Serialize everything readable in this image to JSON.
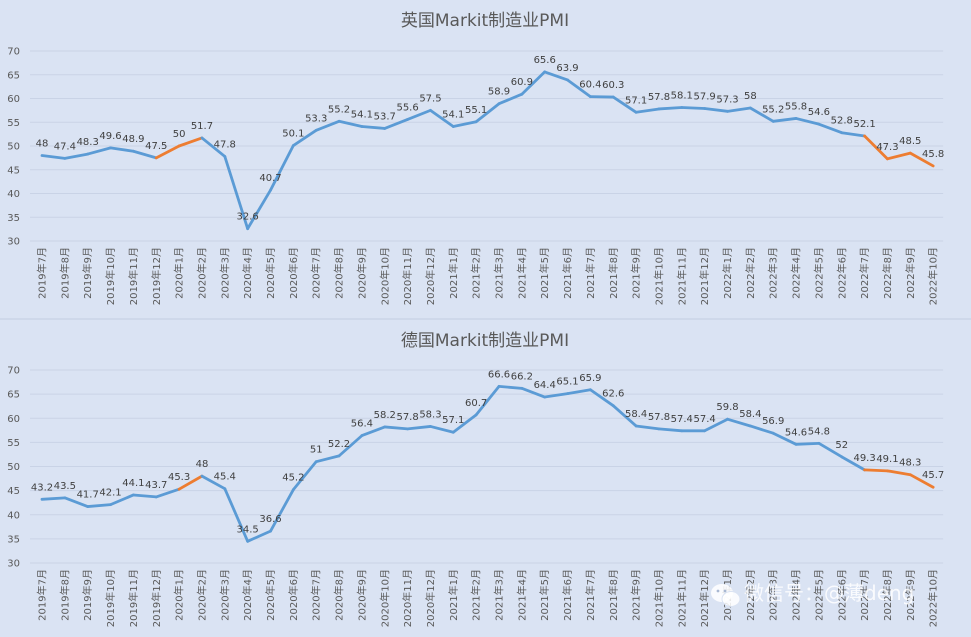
{
  "chart_data": [
    {
      "type": "line",
      "title": "英国Markit制造业PMI",
      "ylim": [
        30,
        70
      ],
      "yticks": [
        30,
        35,
        40,
        45,
        50,
        55,
        60,
        65,
        70
      ],
      "grid": true,
      "categories": [
        "2019年7月",
        "2019年8月",
        "2019年9月",
        "2019年10月",
        "2019年11月",
        "2019年12月",
        "2020年1月",
        "2020年2月",
        "2020年3月",
        "2020年4月",
        "2020年5月",
        "2020年6月",
        "2020年7月",
        "2020年8月",
        "2020年9月",
        "2020年10月",
        "2020年11月",
        "2020年12月",
        "2021年1月",
        "2021年2月",
        "2021年3月",
        "2021年4月",
        "2021年5月",
        "2021年6月",
        "2021年7月",
        "2021年8月",
        "2021年9月",
        "2021年10月",
        "2021年11月",
        "2021年12月",
        "2022年1月",
        "2022年2月",
        "2022年3月",
        "2022年4月",
        "2022年5月",
        "2022年6月",
        "2022年7月",
        "2022年8月",
        "2022年9月",
        "2022年10月"
      ],
      "values": [
        48,
        47.4,
        48.3,
        49.6,
        48.9,
        47.5,
        50,
        51.7,
        47.8,
        32.6,
        40.7,
        50.1,
        53.3,
        55.2,
        54.1,
        53.7,
        55.6,
        57.5,
        54.1,
        55.1,
        58.9,
        60.9,
        65.6,
        63.9,
        60.4,
        60.3,
        57.1,
        57.8,
        58.1,
        57.9,
        57.3,
        58,
        55.2,
        55.8,
        54.6,
        52.8,
        52.1,
        47.3,
        48.5,
        45.8
      ],
      "colors": {
        "line": "#5b9bd5",
        "highlight": "#ed7d31"
      },
      "highlight_segments": [
        [
          5,
          7
        ],
        [
          36,
          39
        ]
      ]
    },
    {
      "type": "line",
      "title": "德国Markit制造业PMI",
      "ylim": [
        30,
        70
      ],
      "yticks": [
        30,
        35,
        40,
        45,
        50,
        55,
        60,
        65,
        70
      ],
      "grid": true,
      "categories": [
        "2019年7月",
        "2019年8月",
        "2019年9月",
        "2019年10月",
        "2019年11月",
        "2019年12月",
        "2020年1月",
        "2020年2月",
        "2020年3月",
        "2020年4月",
        "2020年5月",
        "2020年6月",
        "2020年7月",
        "2020年8月",
        "2020年9月",
        "2020年10月",
        "2020年11月",
        "2020年12月",
        "2021年1月",
        "2021年2月",
        "2021年3月",
        "2021年4月",
        "2021年5月",
        "2021年6月",
        "2021年7月",
        "2021年8月",
        "2021年9月",
        "2021年10月",
        "2021年11月",
        "2021年12月",
        "2022年1月",
        "2022年2月",
        "2022年3月",
        "2022年4月",
        "2022年5月",
        "2022年6月",
        "2022年7月",
        "2022年8月",
        "2022年9月",
        "2022年10月"
      ],
      "values": [
        43.2,
        43.5,
        41.7,
        42.1,
        44.1,
        43.7,
        45.3,
        48,
        45.4,
        34.5,
        36.6,
        45.2,
        51,
        52.2,
        56.4,
        58.2,
        57.8,
        58.3,
        57.1,
        60.7,
        66.6,
        66.2,
        64.4,
        65.1,
        65.9,
        62.6,
        58.4,
        57.8,
        57.4,
        57.4,
        59.8,
        58.4,
        56.9,
        54.6,
        54.8,
        52,
        49.3,
        49.1,
        48.3,
        45.7
      ],
      "colors": {
        "line": "#5b9bd5",
        "highlight": "#ed7d31"
      },
      "highlight_segments": [
        [
          6,
          7
        ],
        [
          36,
          39
        ]
      ]
    }
  ],
  "watermark": {
    "text": "微信号：@薄deng",
    "icon": "wechat-icon"
  }
}
